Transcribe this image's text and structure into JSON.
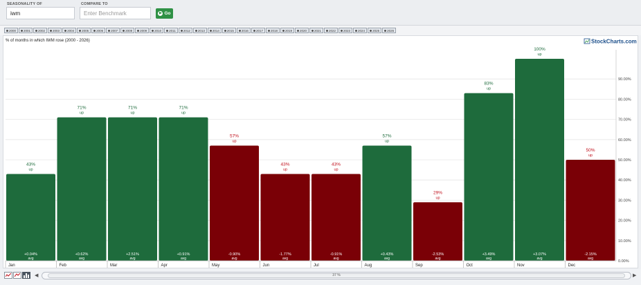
{
  "controls": {
    "seasonality_label": "SEASONALITY OF",
    "symbol_value": "iwm",
    "compare_label": "COMPARE TO",
    "benchmark_placeholder": "Enter Benchmark",
    "go_label": "Go"
  },
  "years": [
    "2000",
    "2001",
    "2002",
    "2003",
    "2004",
    "2005",
    "2006",
    "2007",
    "2008",
    "2009",
    "2010",
    "2011",
    "2012",
    "2013",
    "2014",
    "2015",
    "2016",
    "2017",
    "2018",
    "2019",
    "2020",
    "2021",
    "2022",
    "2023",
    "2024",
    "2025",
    "2026"
  ],
  "brand": "StockCharts.com",
  "scroll_label": "37 %",
  "colors": {
    "up": "#1e6b3c",
    "down": "#7a0006",
    "up_text": "#1e6b3c",
    "down_text": "#c0101c"
  },
  "chart_data": {
    "type": "bar",
    "title": "% of months in which IWM rose (2000 - 2026)",
    "categories": [
      "Jan",
      "Feb",
      "Mar",
      "Apr",
      "May",
      "Jun",
      "Jul",
      "Aug",
      "Sep",
      "Oct",
      "Nov",
      "Dec"
    ],
    "values": [
      43,
      71,
      71,
      71,
      57,
      43,
      43,
      57,
      29,
      83,
      100,
      50
    ],
    "value_labels": [
      "43%",
      "71%",
      "71%",
      "71%",
      "57%",
      "43%",
      "43%",
      "57%",
      "29%",
      "83%",
      "100%",
      "50%"
    ],
    "sub_label": "up",
    "avg_labels": [
      "+0.04%",
      "+0.62%",
      "+2.51%",
      "+0.91%",
      "-0.90%",
      "-1.77%",
      "-0.91%",
      "+0.43%",
      "-2.53%",
      "+3.49%",
      "+3.07%",
      "-2.15%"
    ],
    "avg_word": "avg",
    "direction": [
      "up",
      "up",
      "up",
      "up",
      "down",
      "down",
      "down",
      "up",
      "down",
      "up",
      "up",
      "down"
    ],
    "ylim": [
      0,
      100
    ],
    "yticks": [
      0,
      10,
      20,
      30,
      40,
      50,
      60,
      70,
      80,
      90
    ],
    "ytick_labels": [
      "0.00%",
      "10.00%",
      "20.00%",
      "30.00%",
      "40.00%",
      "50.00%",
      "60.00%",
      "70.00%",
      "80.00%",
      "90.00%"
    ],
    "grid": true
  }
}
